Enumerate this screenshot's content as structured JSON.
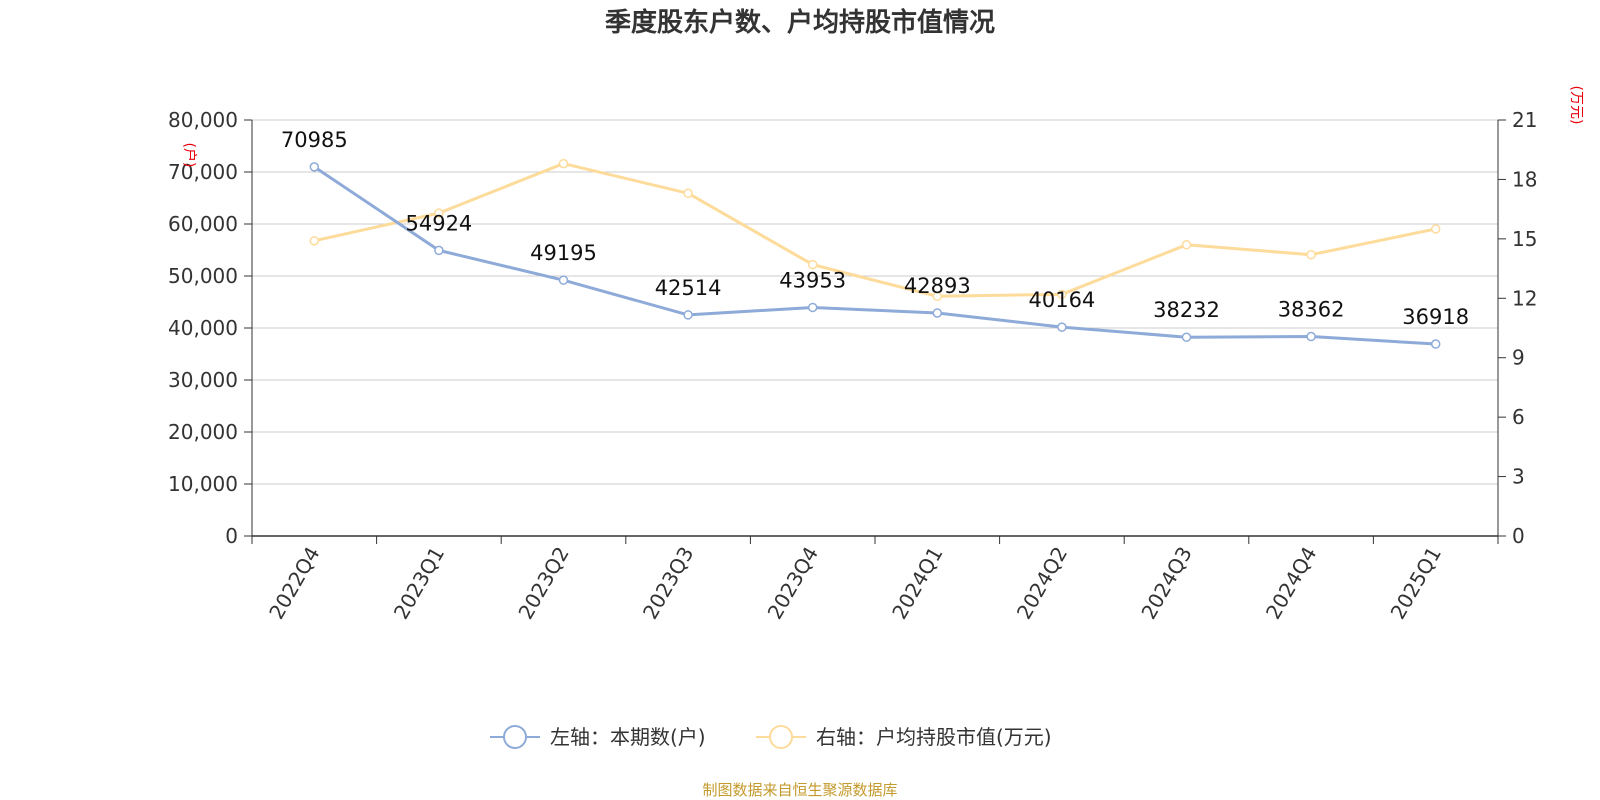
{
  "chart_data": {
    "type": "line",
    "title": "季度股东户数、户均持股市值情况",
    "categories": [
      "2022Q4",
      "2023Q1",
      "2023Q2",
      "2023Q3",
      "2023Q4",
      "2024Q1",
      "2024Q2",
      "2024Q3",
      "2024Q4",
      "2025Q1"
    ],
    "series": [
      {
        "name": "左轴：本期数(户)",
        "axis": "left",
        "color": "#8eaad8",
        "values": [
          70985,
          54924,
          49195,
          42514,
          43953,
          42893,
          40164,
          38232,
          38362,
          36918
        ],
        "labels": [
          "70985",
          "54924",
          "49195",
          "42514",
          "43953",
          "42893",
          "40164",
          "38232",
          "38362",
          "36918"
        ]
      },
      {
        "name": "右轴：户均持股市值(万元)",
        "axis": "right",
        "color": "#fddb9a",
        "values": [
          14.9,
          16.3,
          18.8,
          17.3,
          13.7,
          12.1,
          12.2,
          14.7,
          14.2,
          15.5
        ]
      }
    ],
    "left_axis": {
      "unit": "(户)",
      "ylim": [
        0,
        80000
      ],
      "ticks": [
        "0",
        "10,000",
        "20,000",
        "30,000",
        "40,000",
        "50,000",
        "60,000",
        "70,000",
        "80,000"
      ]
    },
    "right_axis": {
      "unit": "(万元)",
      "ylim": [
        0,
        21
      ],
      "ticks": [
        "0",
        "3",
        "6",
        "9",
        "12",
        "15",
        "18",
        "21"
      ]
    },
    "grid": true,
    "legend_position": "bottom-center"
  },
  "source": "制图数据来自恒生聚源数据库"
}
